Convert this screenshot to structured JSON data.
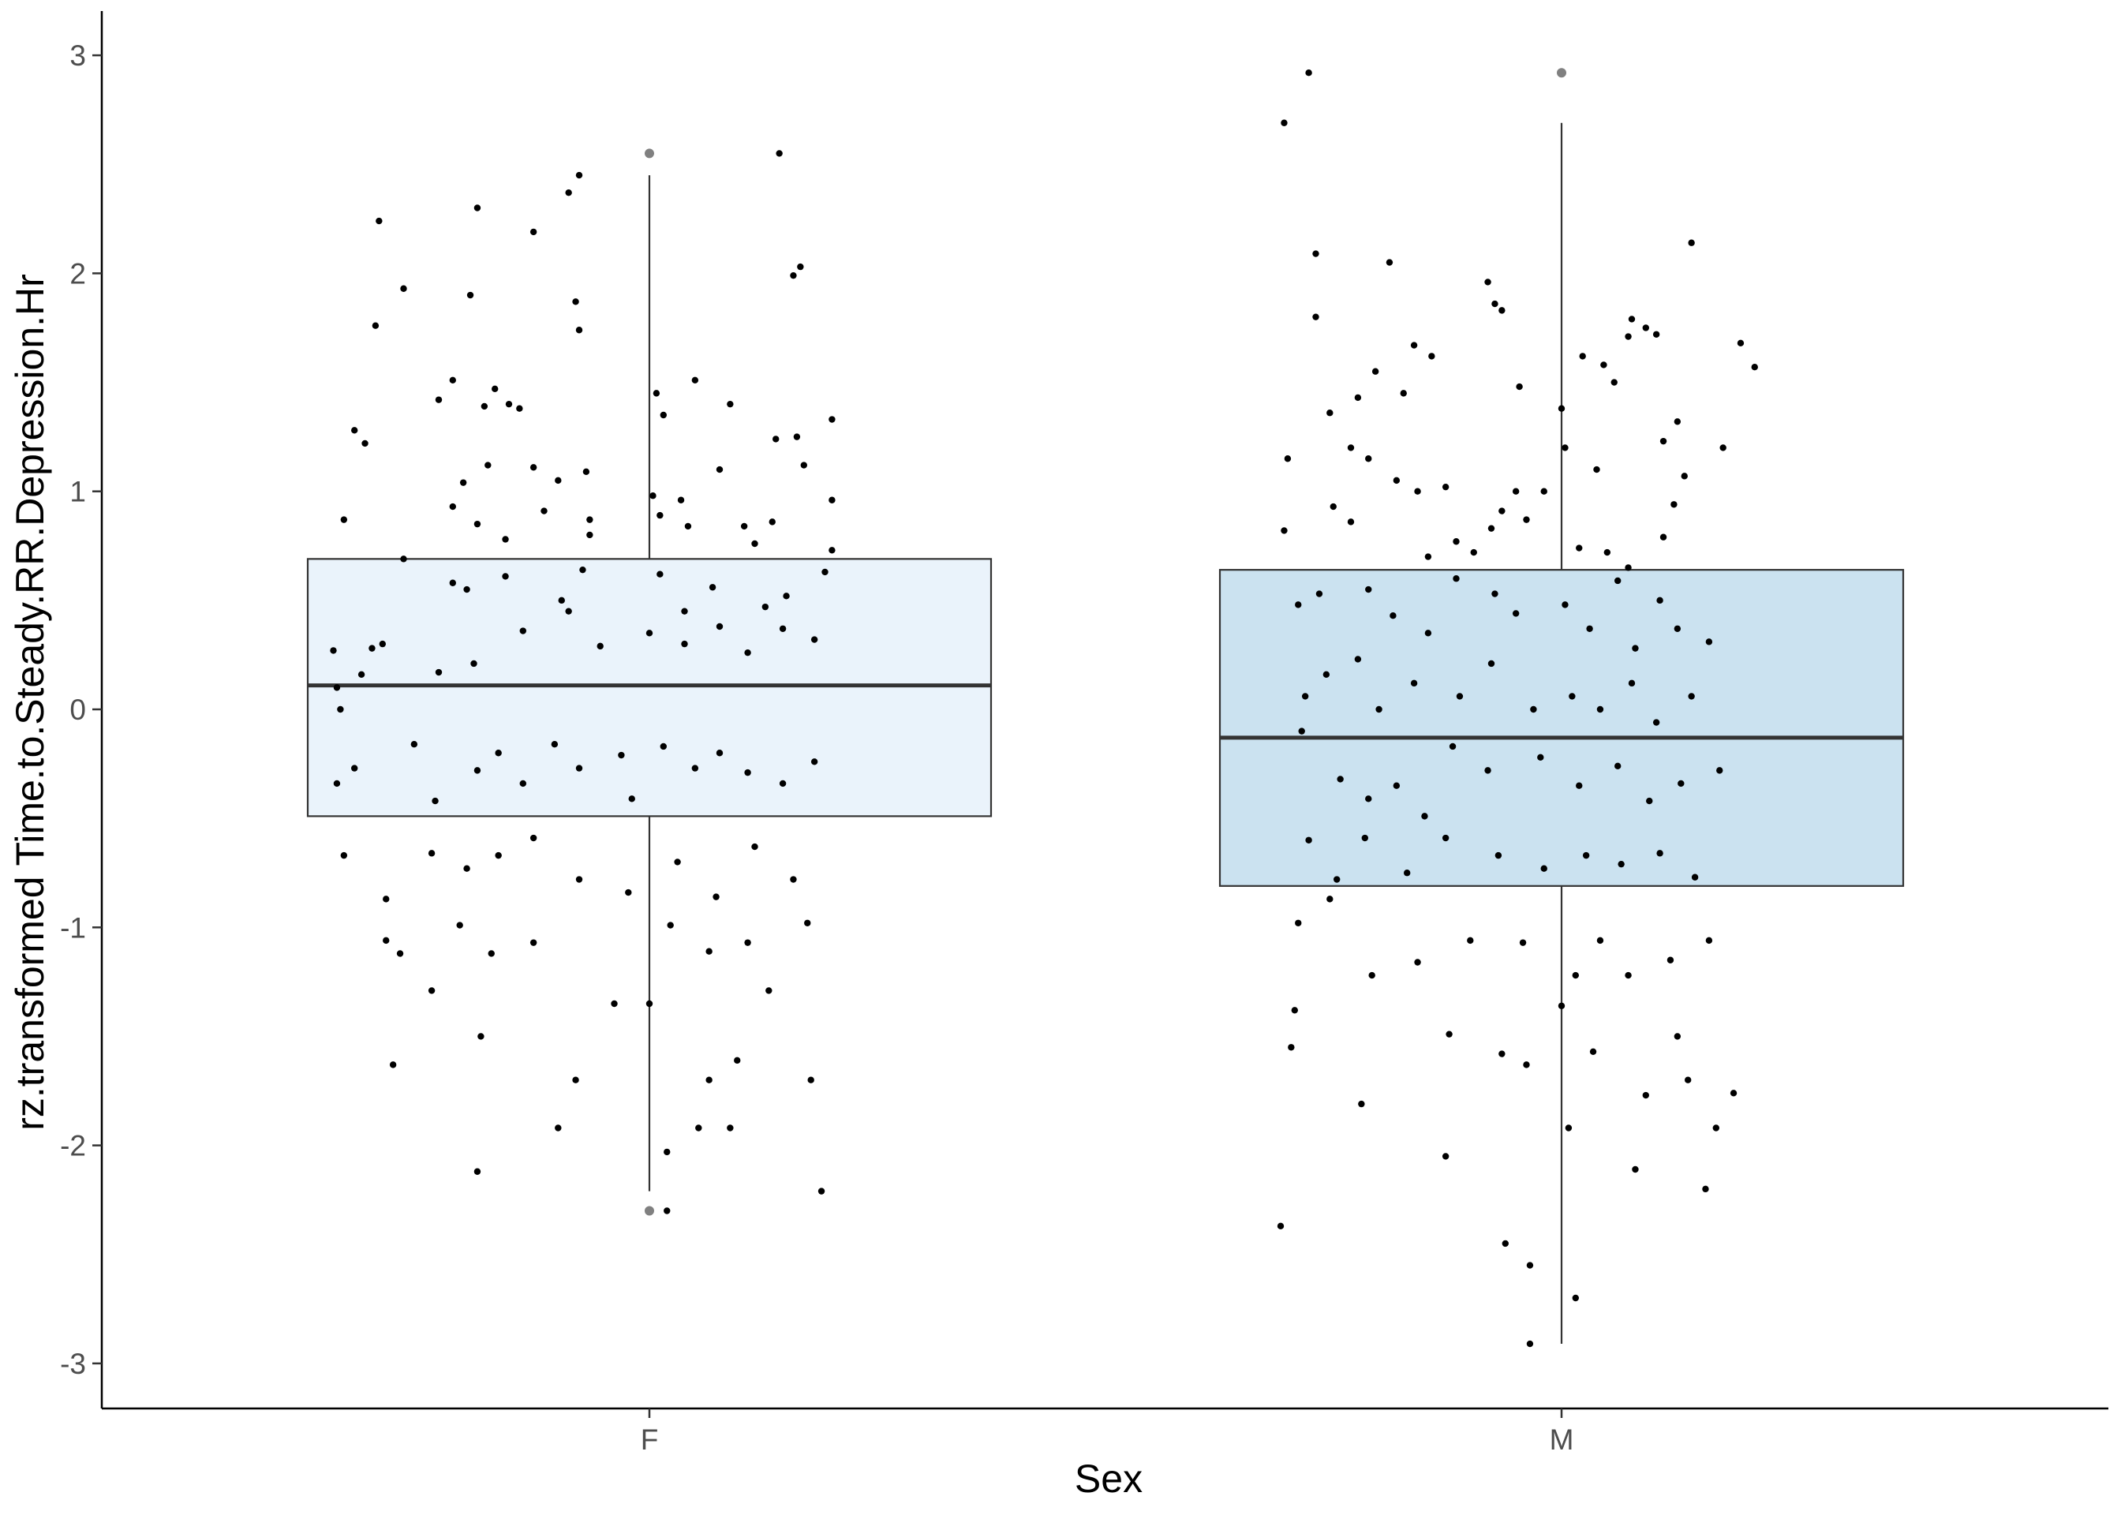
{
  "chart_data": {
    "type": "boxplot",
    "xlabel": "Sex",
    "ylabel": "rz.transformed Time.to.Steady.RR.Depression.Hr",
    "categories": [
      "F",
      "M"
    ],
    "ylim": [
      -3.2,
      3.2
    ],
    "yticks": [
      3,
      2,
      1,
      0,
      -1,
      -2,
      -3
    ],
    "ytick_labels": [
      "3",
      "2",
      "1",
      "0",
      "-1",
      "-2",
      "-3"
    ],
    "grid": false,
    "legend": "none",
    "box_colors": {
      "F": "#eaf3fb",
      "M": "#cbe2f0"
    },
    "boxes": [
      {
        "category": "F",
        "q1": -0.49,
        "median": 0.11,
        "q3": 0.69,
        "whisker_low": -2.21,
        "whisker_high": 2.45,
        "outliers": [
          2.55,
          -2.3
        ]
      },
      {
        "category": "M",
        "q1": -0.81,
        "median": -0.13,
        "q3": 0.64,
        "whisker_low": -2.91,
        "whisker_high": 2.69,
        "outliers": [
          2.92
        ]
      }
    ],
    "points": {
      "F": [
        {
          "x": -0.77,
          "y": 2.24
        },
        {
          "x": -0.7,
          "y": 1.93
        },
        {
          "x": -0.51,
          "y": 1.9
        },
        {
          "x": -0.49,
          "y": 2.3
        },
        {
          "x": -0.33,
          "y": 2.19
        },
        {
          "x": -0.23,
          "y": 2.37
        },
        {
          "x": -0.2,
          "y": 2.45
        },
        {
          "x": 0.37,
          "y": 2.55
        },
        {
          "x": 0.43,
          "y": 2.03
        },
        {
          "x": 0.41,
          "y": 1.99
        },
        {
          "x": -0.78,
          "y": 1.76
        },
        {
          "x": -0.21,
          "y": 1.87
        },
        {
          "x": -0.2,
          "y": 1.74
        },
        {
          "x": -0.84,
          "y": 1.28
        },
        {
          "x": -0.81,
          "y": 1.22
        },
        {
          "x": -0.56,
          "y": 1.51
        },
        {
          "x": -0.6,
          "y": 1.42
        },
        {
          "x": -0.47,
          "y": 1.39
        },
        {
          "x": -0.44,
          "y": 1.47
        },
        {
          "x": -0.4,
          "y": 1.4
        },
        {
          "x": -0.37,
          "y": 1.38
        },
        {
          "x": 0.02,
          "y": 1.45
        },
        {
          "x": 0.04,
          "y": 1.35
        },
        {
          "x": 0.13,
          "y": 1.51
        },
        {
          "x": 0.23,
          "y": 1.4
        },
        {
          "x": 0.36,
          "y": 1.24
        },
        {
          "x": 0.42,
          "y": 1.25
        },
        {
          "x": 0.44,
          "y": 1.12
        },
        {
          "x": 0.52,
          "y": 1.33
        },
        {
          "x": -0.53,
          "y": 1.04
        },
        {
          "x": -0.56,
          "y": 0.93
        },
        {
          "x": -0.46,
          "y": 1.12
        },
        {
          "x": -0.33,
          "y": 1.11
        },
        {
          "x": -0.26,
          "y": 1.05
        },
        {
          "x": -0.3,
          "y": 0.91
        },
        {
          "x": -0.18,
          "y": 1.09
        },
        {
          "x": -0.17,
          "y": 0.87
        },
        {
          "x": 0.01,
          "y": 0.98
        },
        {
          "x": 0.03,
          "y": 0.89
        },
        {
          "x": 0.11,
          "y": 0.84
        },
        {
          "x": 0.09,
          "y": 0.96
        },
        {
          "x": 0.2,
          "y": 1.1
        },
        {
          "x": 0.27,
          "y": 0.84
        },
        {
          "x": 0.3,
          "y": 0.76
        },
        {
          "x": 0.35,
          "y": 0.86
        },
        {
          "x": 0.52,
          "y": 0.96
        },
        {
          "x": -0.87,
          "y": 0.87
        },
        {
          "x": -0.49,
          "y": 0.85
        },
        {
          "x": -0.41,
          "y": 0.78
        },
        {
          "x": -0.17,
          "y": 0.8
        },
        {
          "x": 0.52,
          "y": 0.73
        },
        {
          "x": -0.41,
          "y": 0.61
        },
        {
          "x": -0.52,
          "y": 0.55
        },
        {
          "x": -0.56,
          "y": 0.58
        },
        {
          "x": -0.7,
          "y": 0.69
        },
        {
          "x": -0.25,
          "y": 0.5
        },
        {
          "x": -0.23,
          "y": 0.45
        },
        {
          "x": -0.19,
          "y": 0.64
        },
        {
          "x": 0.03,
          "y": 0.62
        },
        {
          "x": 0.1,
          "y": 0.45
        },
        {
          "x": 0.18,
          "y": 0.56
        },
        {
          "x": 0.33,
          "y": 0.47
        },
        {
          "x": 0.39,
          "y": 0.52
        },
        {
          "x": 0.5,
          "y": 0.63
        },
        {
          "x": -0.79,
          "y": 0.28
        },
        {
          "x": -0.82,
          "y": 0.16
        },
        {
          "x": -0.76,
          "y": 0.3
        },
        {
          "x": -0.89,
          "y": 0.1
        },
        {
          "x": -0.9,
          "y": 0.27
        },
        {
          "x": -0.88,
          "y": 0.0
        },
        {
          "x": -0.6,
          "y": 0.17
        },
        {
          "x": -0.5,
          "y": 0.21
        },
        {
          "x": -0.36,
          "y": 0.36
        },
        {
          "x": -0.14,
          "y": 0.29
        },
        {
          "x": 0.0,
          "y": 0.35
        },
        {
          "x": 0.1,
          "y": 0.3
        },
        {
          "x": 0.2,
          "y": 0.38
        },
        {
          "x": 0.28,
          "y": 0.26
        },
        {
          "x": 0.38,
          "y": 0.37
        },
        {
          "x": 0.47,
          "y": 0.32
        },
        {
          "x": -0.89,
          "y": -0.34
        },
        {
          "x": -0.84,
          "y": -0.27
        },
        {
          "x": -0.67,
          "y": -0.16
        },
        {
          "x": -0.61,
          "y": -0.42
        },
        {
          "x": -0.49,
          "y": -0.28
        },
        {
          "x": -0.43,
          "y": -0.2
        },
        {
          "x": -0.36,
          "y": -0.34
        },
        {
          "x": -0.27,
          "y": -0.16
        },
        {
          "x": -0.2,
          "y": -0.27
        },
        {
          "x": -0.08,
          "y": -0.21
        },
        {
          "x": -0.05,
          "y": -0.41
        },
        {
          "x": 0.04,
          "y": -0.17
        },
        {
          "x": 0.13,
          "y": -0.27
        },
        {
          "x": 0.2,
          "y": -0.2
        },
        {
          "x": 0.28,
          "y": -0.29
        },
        {
          "x": 0.38,
          "y": -0.34
        },
        {
          "x": 0.47,
          "y": -0.24
        },
        {
          "x": -0.87,
          "y": -0.67
        },
        {
          "x": -0.75,
          "y": -0.87
        },
        {
          "x": -0.62,
          "y": -0.66
        },
        {
          "x": -0.52,
          "y": -0.73
        },
        {
          "x": -0.43,
          "y": -0.67
        },
        {
          "x": -0.33,
          "y": -0.59
        },
        {
          "x": -0.2,
          "y": -0.78
        },
        {
          "x": -0.06,
          "y": -0.84
        },
        {
          "x": 0.08,
          "y": -0.7
        },
        {
          "x": 0.19,
          "y": -0.86
        },
        {
          "x": 0.3,
          "y": -0.63
        },
        {
          "x": 0.41,
          "y": -0.78
        },
        {
          "x": -0.75,
          "y": -1.06
        },
        {
          "x": -0.71,
          "y": -1.12
        },
        {
          "x": -0.62,
          "y": -1.29
        },
        {
          "x": -0.54,
          "y": -0.99
        },
        {
          "x": -0.45,
          "y": -1.12
        },
        {
          "x": -0.33,
          "y": -1.07
        },
        {
          "x": -0.1,
          "y": -1.35
        },
        {
          "x": 0.06,
          "y": -0.99
        },
        {
          "x": 0.17,
          "y": -1.11
        },
        {
          "x": 0.28,
          "y": -1.07
        },
        {
          "x": 0.34,
          "y": -1.29
        },
        {
          "x": 0.45,
          "y": -0.98
        },
        {
          "x": -0.73,
          "y": -1.63
        },
        {
          "x": -0.48,
          "y": -1.5
        },
        {
          "x": -0.21,
          "y": -1.7
        },
        {
          "x": 0.17,
          "y": -1.7
        },
        {
          "x": 0.25,
          "y": -1.61
        },
        {
          "x": -0.49,
          "y": -2.12
        },
        {
          "x": -0.26,
          "y": -1.92
        },
        {
          "x": 0.05,
          "y": -2.03
        },
        {
          "x": 0.14,
          "y": -1.92
        },
        {
          "x": 0.23,
          "y": -1.92
        },
        {
          "x": 0.46,
          "y": -1.7
        },
        {
          "x": 0.49,
          "y": -2.21
        },
        {
          "x": 0.05,
          "y": -2.3
        },
        {
          "x": 0.0,
          "y": -1.35
        }
      ],
      "M": [
        {
          "x": -0.72,
          "y": 2.92
        },
        {
          "x": -0.79,
          "y": 2.69
        },
        {
          "x": -0.7,
          "y": 2.09
        },
        {
          "x": -0.49,
          "y": 2.05
        },
        {
          "x": -0.21,
          "y": 1.96
        },
        {
          "x": -0.19,
          "y": 1.86
        },
        {
          "x": -0.17,
          "y": 1.83
        },
        {
          "x": 0.24,
          "y": 1.75
        },
        {
          "x": 0.19,
          "y": 1.71
        },
        {
          "x": 0.37,
          "y": 2.14
        },
        {
          "x": 0.51,
          "y": 1.68
        },
        {
          "x": -0.7,
          "y": 1.8
        },
        {
          "x": -0.58,
          "y": 1.43
        },
        {
          "x": -0.53,
          "y": 1.55
        },
        {
          "x": -0.45,
          "y": 1.45
        },
        {
          "x": -0.42,
          "y": 1.67
        },
        {
          "x": -0.37,
          "y": 1.62
        },
        {
          "x": -0.12,
          "y": 1.48
        },
        {
          "x": 0.0,
          "y": 1.38
        },
        {
          "x": 0.06,
          "y": 1.62
        },
        {
          "x": 0.12,
          "y": 1.58
        },
        {
          "x": 0.15,
          "y": 1.5
        },
        {
          "x": 0.2,
          "y": 1.79
        },
        {
          "x": 0.27,
          "y": 1.72
        },
        {
          "x": 0.33,
          "y": 1.32
        },
        {
          "x": 0.55,
          "y": 1.57
        },
        {
          "x": -0.78,
          "y": 1.15
        },
        {
          "x": -0.66,
          "y": 1.36
        },
        {
          "x": -0.6,
          "y": 1.2
        },
        {
          "x": -0.55,
          "y": 1.15
        },
        {
          "x": -0.47,
          "y": 1.05
        },
        {
          "x": -0.41,
          "y": 1.0
        },
        {
          "x": -0.33,
          "y": 1.02
        },
        {
          "x": -0.17,
          "y": 0.91
        },
        {
          "x": -0.13,
          "y": 1.0
        },
        {
          "x": -0.05,
          "y": 1.0
        },
        {
          "x": 0.01,
          "y": 1.2
        },
        {
          "x": 0.1,
          "y": 1.1
        },
        {
          "x": 0.29,
          "y": 1.23
        },
        {
          "x": 0.35,
          "y": 1.07
        },
        {
          "x": 0.46,
          "y": 1.2
        },
        {
          "x": -0.79,
          "y": 0.82
        },
        {
          "x": -0.65,
          "y": 0.93
        },
        {
          "x": -0.6,
          "y": 0.86
        },
        {
          "x": -0.38,
          "y": 0.7
        },
        {
          "x": -0.3,
          "y": 0.77
        },
        {
          "x": -0.25,
          "y": 0.72
        },
        {
          "x": -0.2,
          "y": 0.83
        },
        {
          "x": -0.1,
          "y": 0.87
        },
        {
          "x": 0.05,
          "y": 0.74
        },
        {
          "x": 0.13,
          "y": 0.72
        },
        {
          "x": 0.19,
          "y": 0.65
        },
        {
          "x": 0.29,
          "y": 0.79
        },
        {
          "x": 0.32,
          "y": 0.94
        },
        {
          "x": -0.75,
          "y": 0.48
        },
        {
          "x": -0.69,
          "y": 0.53
        },
        {
          "x": -0.55,
          "y": 0.55
        },
        {
          "x": -0.48,
          "y": 0.43
        },
        {
          "x": -0.38,
          "y": 0.35
        },
        {
          "x": -0.3,
          "y": 0.6
        },
        {
          "x": -0.19,
          "y": 0.53
        },
        {
          "x": -0.13,
          "y": 0.44
        },
        {
          "x": 0.01,
          "y": 0.48
        },
        {
          "x": 0.08,
          "y": 0.37
        },
        {
          "x": 0.16,
          "y": 0.59
        },
        {
          "x": 0.21,
          "y": 0.28
        },
        {
          "x": 0.28,
          "y": 0.5
        },
        {
          "x": 0.33,
          "y": 0.37
        },
        {
          "x": 0.42,
          "y": 0.31
        },
        {
          "x": -0.73,
          "y": 0.06
        },
        {
          "x": -0.67,
          "y": 0.16
        },
        {
          "x": -0.58,
          "y": 0.23
        },
        {
          "x": -0.52,
          "y": 0.0
        },
        {
          "x": -0.42,
          "y": 0.12
        },
        {
          "x": -0.29,
          "y": 0.06
        },
        {
          "x": -0.2,
          "y": 0.21
        },
        {
          "x": -0.08,
          "y": 0.0
        },
        {
          "x": 0.03,
          "y": 0.06
        },
        {
          "x": 0.11,
          "y": 0.0
        },
        {
          "x": 0.2,
          "y": 0.12
        },
        {
          "x": 0.27,
          "y": -0.06
        },
        {
          "x": 0.37,
          "y": 0.06
        },
        {
          "x": -0.74,
          "y": -0.1
        },
        {
          "x": -0.63,
          "y": -0.32
        },
        {
          "x": -0.55,
          "y": -0.41
        },
        {
          "x": -0.47,
          "y": -0.35
        },
        {
          "x": -0.39,
          "y": -0.49
        },
        {
          "x": -0.31,
          "y": -0.17
        },
        {
          "x": -0.21,
          "y": -0.28
        },
        {
          "x": -0.06,
          "y": -0.22
        },
        {
          "x": 0.05,
          "y": -0.35
        },
        {
          "x": 0.16,
          "y": -0.26
        },
        {
          "x": 0.25,
          "y": -0.42
        },
        {
          "x": 0.34,
          "y": -0.34
        },
        {
          "x": 0.45,
          "y": -0.28
        },
        {
          "x": -0.72,
          "y": -0.6
        },
        {
          "x": -0.64,
          "y": -0.78
        },
        {
          "x": -0.56,
          "y": -0.59
        },
        {
          "x": -0.44,
          "y": -0.75
        },
        {
          "x": -0.33,
          "y": -0.59
        },
        {
          "x": -0.18,
          "y": -0.67
        },
        {
          "x": -0.05,
          "y": -0.73
        },
        {
          "x": 0.07,
          "y": -0.67
        },
        {
          "x": 0.17,
          "y": -0.71
        },
        {
          "x": 0.28,
          "y": -0.66
        },
        {
          "x": 0.38,
          "y": -0.77
        },
        {
          "x": -0.75,
          "y": -0.98
        },
        {
          "x": -0.66,
          "y": -0.87
        },
        {
          "x": -0.54,
          "y": -1.22
        },
        {
          "x": -0.41,
          "y": -1.16
        },
        {
          "x": -0.26,
          "y": -1.06
        },
        {
          "x": -0.11,
          "y": -1.07
        },
        {
          "x": 0.04,
          "y": -1.22
        },
        {
          "x": 0.11,
          "y": -1.06
        },
        {
          "x": 0.19,
          "y": -1.22
        },
        {
          "x": 0.31,
          "y": -1.15
        },
        {
          "x": 0.42,
          "y": -1.06
        },
        {
          "x": -0.76,
          "y": -1.38
        },
        {
          "x": -0.77,
          "y": -1.55
        },
        {
          "x": -0.57,
          "y": -1.81
        },
        {
          "x": -0.32,
          "y": -1.49
        },
        {
          "x": -0.17,
          "y": -1.58
        },
        {
          "x": -0.1,
          "y": -1.63
        },
        {
          "x": 0.0,
          "y": -1.36
        },
        {
          "x": 0.09,
          "y": -1.57
        },
        {
          "x": 0.24,
          "y": -1.77
        },
        {
          "x": 0.33,
          "y": -1.5
        },
        {
          "x": 0.36,
          "y": -1.7
        },
        {
          "x": -0.8,
          "y": -2.37
        },
        {
          "x": -0.33,
          "y": -2.05
        },
        {
          "x": -0.16,
          "y": -2.45
        },
        {
          "x": 0.02,
          "y": -1.92
        },
        {
          "x": 0.21,
          "y": -2.11
        },
        {
          "x": 0.44,
          "y": -1.92
        },
        {
          "x": -0.09,
          "y": -2.55
        },
        {
          "x": 0.04,
          "y": -2.7
        },
        {
          "x": -0.09,
          "y": -2.91
        },
        {
          "x": 0.49,
          "y": -1.76
        },
        {
          "x": 0.41,
          "y": -2.2
        }
      ]
    }
  }
}
